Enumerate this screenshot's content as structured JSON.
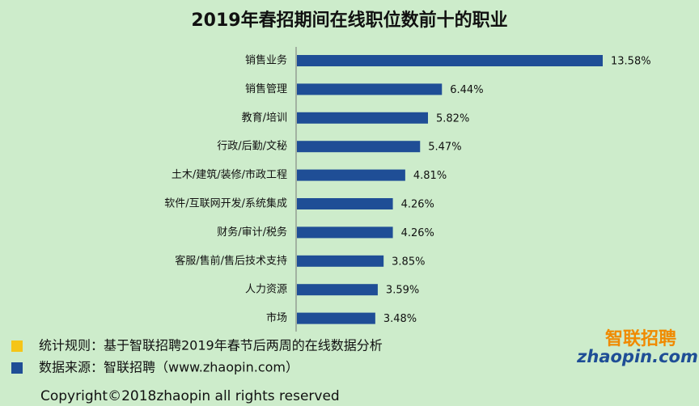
{
  "chart_data": {
    "type": "bar",
    "orientation": "horizontal",
    "title": "2019年春招期间在线职位数前十的职业",
    "categories": [
      "销售业务",
      "销售管理",
      "教育/培训",
      "行政/后勤/文秘",
      "土木/建筑/装修/市政工程",
      "软件/互联网开发/系统集成",
      "财务/审计/税务",
      "客服/售前/售后技术支持",
      "人力资源",
      "市场"
    ],
    "values": [
      13.58,
      6.44,
      5.82,
      5.47,
      4.81,
      4.26,
      4.26,
      3.85,
      3.59,
      3.48
    ],
    "value_labels": [
      "13.58%",
      "6.44%",
      "5.82%",
      "5.47%",
      "4.81%",
      "4.26%",
      "4.26%",
      "3.85%",
      "3.59%",
      "3.48%"
    ],
    "color": "#1f4e96",
    "notes": [
      {
        "text": "统计规则：基于智联招聘2019年春节后两周的在线数据分析",
        "color": "#f5c518"
      },
      {
        "text": "数据来源：智联招聘（www.zhaopin.com）",
        "color": "#1f4e96"
      }
    ],
    "logo": {
      "brand": "智联招聘",
      "site": "zhaopin.com"
    },
    "copyright": "Copyright©2018zhaopin all rights reserved"
  }
}
